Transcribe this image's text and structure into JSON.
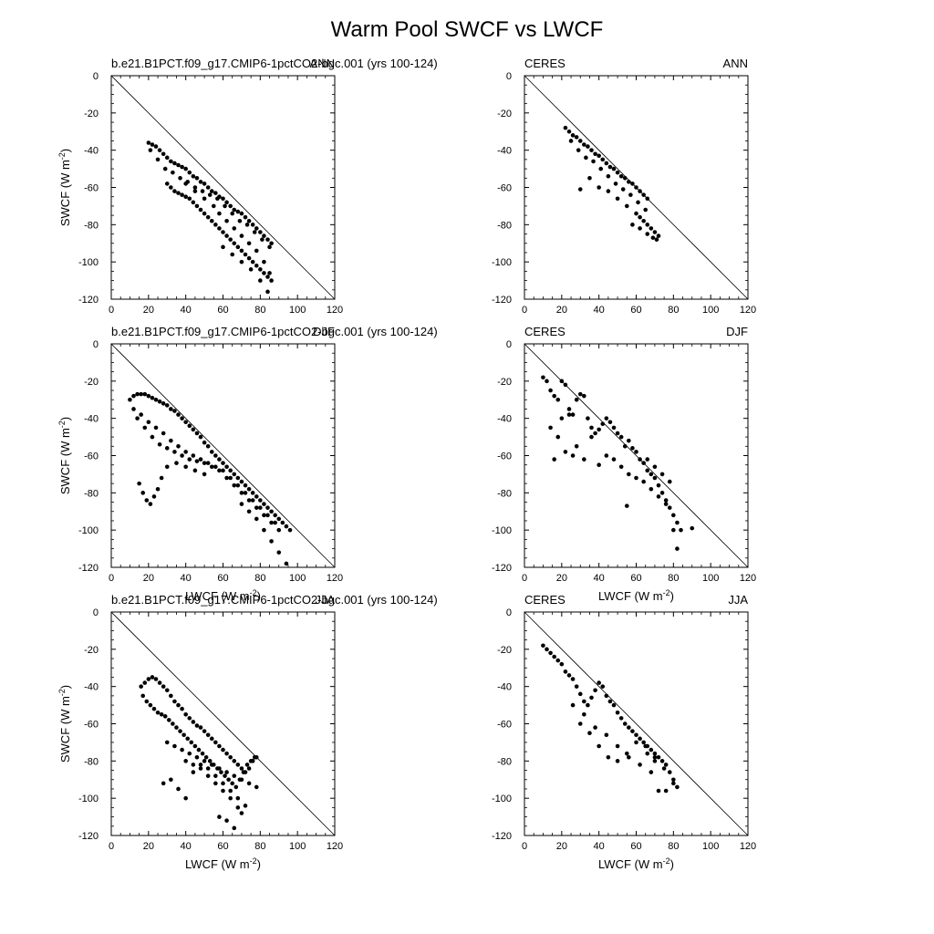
{
  "figure": {
    "title": "Warm Pool SWCF vs LWCF",
    "x_axis_title": "LWCF (W m",
    "y_axis_title": "SWCF (W m",
    "unit_exponent": "-2"
  },
  "chart_data": [
    {
      "type": "scatter",
      "left_label": "b.e21.B1PCT.f09_g17.CMIP6-1pctCO2-bgc.001 (yrs 100-124)",
      "right_label": "ANN",
      "xlim": [
        0,
        120
      ],
      "ylim": [
        -120,
        0
      ],
      "x_ticks": [
        0,
        20,
        40,
        60,
        80,
        100,
        120
      ],
      "y_ticks": [
        0,
        -20,
        -40,
        -60,
        -80,
        -100,
        -120
      ],
      "show_xlabel": false,
      "show_ylabel": true,
      "one_to_one_line": true,
      "x": [
        20,
        22,
        24,
        26,
        28,
        30,
        32,
        34,
        36,
        38,
        40,
        42,
        44,
        46,
        48,
        50,
        52,
        54,
        56,
        58,
        60,
        62,
        64,
        66,
        68,
        70,
        72,
        74,
        76,
        78,
        80,
        82,
        84,
        86,
        21,
        25,
        29,
        33,
        37,
        41,
        45,
        49,
        53,
        57,
        61,
        65,
        69,
        73,
        77,
        81,
        85,
        30,
        32,
        34,
        36,
        38,
        40,
        42,
        44,
        46,
        48,
        50,
        52,
        54,
        56,
        58,
        60,
        62,
        64,
        66,
        68,
        70,
        72,
        74,
        76,
        78,
        80,
        82,
        84,
        86,
        40,
        45,
        50,
        55,
        58,
        62,
        66,
        70,
        74,
        78,
        82,
        85,
        60,
        65,
        70,
        75,
        80,
        84
      ],
      "y": [
        -36,
        -37,
        -38,
        -40,
        -42,
        -44,
        -46,
        -47,
        -48,
        -49,
        -50,
        -52,
        -54,
        -55,
        -57,
        -58,
        -60,
        -62,
        -63,
        -65,
        -66,
        -68,
        -70,
        -72,
        -73,
        -74,
        -76,
        -78,
        -80,
        -82,
        -84,
        -86,
        -88,
        -90,
        -40,
        -45,
        -50,
        -52,
        -55,
        -57,
        -60,
        -62,
        -64,
        -66,
        -70,
        -74,
        -78,
        -80,
        -84,
        -88,
        -92,
        -58,
        -60,
        -62,
        -63,
        -64,
        -65,
        -66,
        -68,
        -70,
        -72,
        -74,
        -76,
        -78,
        -80,
        -82,
        -84,
        -86,
        -88,
        -90,
        -92,
        -94,
        -96,
        -98,
        -100,
        -102,
        -104,
        -106,
        -108,
        -110,
        -58,
        -62,
        -66,
        -70,
        -74,
        -78,
        -82,
        -86,
        -90,
        -94,
        -100,
        -106,
        -92,
        -96,
        -100,
        -104,
        -110,
        -116
      ]
    },
    {
      "type": "scatter",
      "left_label": "CERES",
      "right_label": "ANN",
      "xlim": [
        0,
        120
      ],
      "ylim": [
        -120,
        0
      ],
      "x_ticks": [
        0,
        20,
        40,
        60,
        80,
        100,
        120
      ],
      "y_ticks": [
        0,
        -20,
        -40,
        -60,
        -80,
        -100,
        -120
      ],
      "show_xlabel": false,
      "show_ylabel": false,
      "one_to_one_line": true,
      "x": [
        22,
        24,
        26,
        28,
        30,
        32,
        34,
        36,
        38,
        40,
        42,
        44,
        46,
        48,
        50,
        52,
        54,
        56,
        58,
        60,
        62,
        64,
        66,
        25,
        29,
        33,
        37,
        41,
        45,
        49,
        53,
        57,
        61,
        65,
        30,
        35,
        40,
        45,
        50,
        55,
        60,
        62,
        64,
        66,
        68,
        70,
        72,
        58,
        62,
        66,
        69,
        71
      ],
      "y": [
        -28,
        -30,
        -32,
        -33,
        -35,
        -37,
        -38,
        -40,
        -42,
        -43,
        -45,
        -47,
        -49,
        -50,
        -52,
        -54,
        -55,
        -57,
        -58,
        -60,
        -62,
        -64,
        -66,
        -35,
        -40,
        -44,
        -46,
        -50,
        -54,
        -58,
        -61,
        -64,
        -68,
        -72,
        -61,
        -55,
        -60,
        -62,
        -66,
        -70,
        -74,
        -76,
        -78,
        -80,
        -82,
        -84,
        -86,
        -80,
        -82,
        -85,
        -87,
        -88
      ]
    },
    {
      "type": "scatter",
      "left_label": "b.e21.B1PCT.f09_g17.CMIP6-1pctCO2-bgc.001 (yrs 100-124)",
      "right_label": "DJF",
      "xlim": [
        0,
        120
      ],
      "ylim": [
        -120,
        0
      ],
      "x_ticks": [
        0,
        20,
        40,
        60,
        80,
        100,
        120
      ],
      "y_ticks": [
        0,
        -20,
        -40,
        -60,
        -80,
        -100,
        -120
      ],
      "show_xlabel": true,
      "show_ylabel": true,
      "one_to_one_line": true,
      "x": [
        10,
        12,
        14,
        16,
        18,
        20,
        22,
        24,
        26,
        28,
        30,
        32,
        34,
        36,
        38,
        40,
        42,
        44,
        46,
        48,
        50,
        52,
        54,
        56,
        58,
        60,
        62,
        64,
        66,
        68,
        70,
        72,
        74,
        76,
        78,
        80,
        82,
        84,
        86,
        88,
        90,
        92,
        94,
        96,
        12,
        16,
        20,
        24,
        28,
        32,
        36,
        40,
        44,
        48,
        52,
        56,
        60,
        64,
        68,
        72,
        76,
        80,
        84,
        88,
        14,
        18,
        22,
        26,
        30,
        34,
        38,
        42,
        46,
        50,
        54,
        58,
        62,
        66,
        70,
        74,
        78,
        82,
        86,
        90,
        15,
        17,
        19,
        21,
        23,
        25,
        27,
        30,
        35,
        40,
        45,
        50,
        70,
        74,
        78,
        82,
        86,
        90,
        94
      ],
      "y": [
        -30,
        -28,
        -27,
        -27,
        -27,
        -28,
        -29,
        -30,
        -31,
        -32,
        -33,
        -35,
        -36,
        -38,
        -40,
        -42,
        -44,
        -46,
        -48,
        -50,
        -53,
        -55,
        -58,
        -60,
        -62,
        -64,
        -66,
        -68,
        -70,
        -72,
        -74,
        -76,
        -78,
        -80,
        -82,
        -84,
        -86,
        -88,
        -90,
        -92,
        -94,
        -96,
        -98,
        -100,
        -35,
        -38,
        -42,
        -45,
        -48,
        -52,
        -55,
        -58,
        -60,
        -62,
        -64,
        -66,
        -68,
        -72,
        -76,
        -80,
        -84,
        -88,
        -92,
        -96,
        -40,
        -45,
        -50,
        -54,
        -56,
        -58,
        -60,
        -62,
        -63,
        -64,
        -66,
        -68,
        -72,
        -76,
        -80,
        -84,
        -88,
        -92,
        -96,
        -100,
        -75,
        -80,
        -84,
        -86,
        -82,
        -78,
        -72,
        -66,
        -64,
        -66,
        -68,
        -70,
        -86,
        -90,
        -94,
        -100,
        -106,
        -112,
        -118
      ]
    },
    {
      "type": "scatter",
      "left_label": "CERES",
      "right_label": "DJF",
      "xlim": [
        0,
        120
      ],
      "ylim": [
        -120,
        0
      ],
      "x_ticks": [
        0,
        20,
        40,
        60,
        80,
        100,
        120
      ],
      "y_ticks": [
        0,
        -20,
        -40,
        -60,
        -80,
        -100,
        -120
      ],
      "show_xlabel": true,
      "show_ylabel": false,
      "one_to_one_line": true,
      "x": [
        10,
        12,
        14,
        16,
        18,
        20,
        22,
        24,
        26,
        28,
        30,
        32,
        34,
        36,
        38,
        40,
        42,
        44,
        46,
        48,
        50,
        52,
        54,
        56,
        58,
        60,
        62,
        64,
        66,
        68,
        70,
        72,
        74,
        76,
        78,
        80,
        82,
        84,
        14,
        18,
        22,
        26,
        16,
        20,
        24,
        28,
        32,
        36,
        40,
        44,
        48,
        52,
        56,
        60,
        64,
        68,
        72,
        76,
        80,
        82,
        90,
        66,
        70,
        74,
        78,
        55
      ],
      "y": [
        -18,
        -20,
        -25,
        -28,
        -30,
        -20,
        -22,
        -35,
        -38,
        -30,
        -27,
        -28,
        -40,
        -45,
        -48,
        -46,
        -43,
        -40,
        -42,
        -45,
        -48,
        -50,
        -55,
        -52,
        -56,
        -58,
        -62,
        -64,
        -68,
        -70,
        -72,
        -76,
        -80,
        -84,
        -88,
        -92,
        -96,
        -100,
        -45,
        -50,
        -58,
        -60,
        -62,
        -40,
        -38,
        -55,
        -62,
        -50,
        -65,
        -60,
        -62,
        -66,
        -70,
        -72,
        -74,
        -78,
        -82,
        -86,
        -100,
        -110,
        -99,
        -62,
        -66,
        -70,
        -74,
        -87
      ]
    },
    {
      "type": "scatter",
      "left_label": "b.e21.B1PCT.f09_g17.CMIP6-1pctCO2-bgc.001 (yrs 100-124)",
      "right_label": "JJA",
      "xlim": [
        0,
        120
      ],
      "ylim": [
        -120,
        0
      ],
      "x_ticks": [
        0,
        20,
        40,
        60,
        80,
        100,
        120
      ],
      "y_ticks": [
        0,
        -20,
        -40,
        -60,
        -80,
        -100,
        -120
      ],
      "show_xlabel": true,
      "show_ylabel": true,
      "one_to_one_line": true,
      "x": [
        16,
        18,
        20,
        22,
        24,
        26,
        28,
        30,
        32,
        34,
        36,
        38,
        40,
        42,
        44,
        46,
        48,
        50,
        52,
        54,
        56,
        58,
        60,
        62,
        64,
        66,
        68,
        70,
        72,
        74,
        76,
        78,
        17,
        19,
        21,
        23,
        25,
        27,
        29,
        31,
        33,
        35,
        37,
        39,
        41,
        43,
        45,
        47,
        49,
        51,
        53,
        55,
        57,
        59,
        61,
        63,
        65,
        67,
        69,
        71,
        73,
        75,
        77,
        30,
        34,
        38,
        42,
        46,
        50,
        54,
        58,
        62,
        66,
        70,
        74,
        78,
        28,
        32,
        36,
        40,
        44,
        48,
        52,
        56,
        60,
        64,
        68,
        72,
        40,
        44,
        48,
        52,
        56,
        60,
        64,
        68,
        58,
        62,
        66,
        70
      ],
      "y": [
        -40,
        -38,
        -36,
        -35,
        -36,
        -38,
        -40,
        -42,
        -45,
        -48,
        -50,
        -52,
        -55,
        -57,
        -59,
        -61,
        -62,
        -64,
        -66,
        -68,
        -70,
        -72,
        -74,
        -76,
        -78,
        -80,
        -82,
        -84,
        -86,
        -84,
        -80,
        -78,
        -45,
        -48,
        -50,
        -52,
        -54,
        -55,
        -56,
        -58,
        -60,
        -62,
        -64,
        -66,
        -68,
        -70,
        -72,
        -74,
        -76,
        -78,
        -80,
        -82,
        -84,
        -86,
        -88,
        -90,
        -92,
        -94,
        -90,
        -86,
        -82,
        -80,
        -78,
        -70,
        -72,
        -74,
        -76,
        -78,
        -80,
        -82,
        -84,
        -86,
        -88,
        -90,
        -92,
        -94,
        -92,
        -90,
        -95,
        -100,
        -86,
        -82,
        -84,
        -88,
        -92,
        -96,
        -100,
        -104,
        -80,
        -82,
        -84,
        -88,
        -92,
        -96,
        -100,
        -105,
        -110,
        -112,
        -116,
        -108
      ]
    },
    {
      "type": "scatter",
      "left_label": "CERES",
      "right_label": "JJA",
      "xlim": [
        0,
        120
      ],
      "ylim": [
        -120,
        0
      ],
      "x_ticks": [
        0,
        20,
        40,
        60,
        80,
        100,
        120
      ],
      "y_ticks": [
        0,
        -20,
        -40,
        -60,
        -80,
        -100,
        -120
      ],
      "show_xlabel": true,
      "show_ylabel": false,
      "one_to_one_line": true,
      "x": [
        10,
        12,
        14,
        16,
        18,
        20,
        22,
        24,
        26,
        28,
        30,
        32,
        34,
        36,
        38,
        40,
        42,
        44,
        46,
        48,
        50,
        52,
        54,
        56,
        58,
        60,
        62,
        64,
        66,
        68,
        70,
        72,
        74,
        76,
        78,
        80,
        82,
        30,
        35,
        40,
        45,
        50,
        55,
        60,
        65,
        70,
        75,
        26,
        32,
        38,
        44,
        50,
        56,
        62,
        68,
        72,
        76,
        80,
        66,
        70
      ],
      "y": [
        -18,
        -20,
        -22,
        -24,
        -26,
        -28,
        -32,
        -34,
        -36,
        -40,
        -44,
        -48,
        -50,
        -46,
        -42,
        -38,
        -40,
        -45,
        -48,
        -50,
        -54,
        -57,
        -60,
        -62,
        -64,
        -66,
        -68,
        -70,
        -72,
        -74,
        -76,
        -78,
        -80,
        -82,
        -86,
        -90,
        -94,
        -60,
        -65,
        -72,
        -78,
        -80,
        -76,
        -70,
        -72,
        -80,
        -84,
        -50,
        -55,
        -62,
        -66,
        -72,
        -78,
        -82,
        -86,
        -96,
        -96,
        -92,
        -76,
        -78
      ]
    }
  ]
}
